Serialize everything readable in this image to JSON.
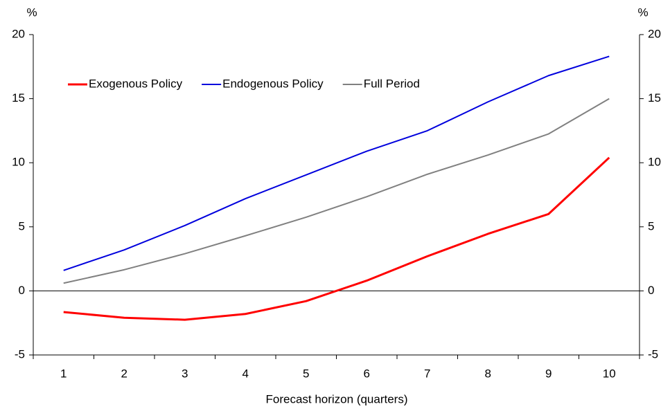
{
  "chart_data": {
    "type": "line",
    "x_label": "Forecast horizon (quarters)",
    "y_unit": "%",
    "y2_unit": "%",
    "categories": [
      "1",
      "2",
      "3",
      "4",
      "5",
      "6",
      "7",
      "8",
      "9",
      "10"
    ],
    "series": [
      {
        "name": "Exogenous Policy",
        "color": "#ff0000",
        "values": [
          -1.65,
          -2.1,
          -2.25,
          -1.8,
          -0.8,
          0.8,
          2.7,
          4.45,
          6.0,
          10.4
        ]
      },
      {
        "name": "Endogenous Policy",
        "color": "#0000dd",
        "values": [
          1.6,
          3.2,
          5.1,
          7.2,
          9.05,
          10.9,
          12.5,
          14.75,
          16.8,
          18.3
        ]
      },
      {
        "name": "Full Period",
        "color": "#808080",
        "values": [
          0.6,
          1.65,
          2.9,
          4.3,
          5.75,
          7.35,
          9.1,
          10.6,
          12.25,
          15.0
        ]
      }
    ],
    "ylim": [
      -5,
      20
    ],
    "yticks": [
      -5,
      0,
      5,
      10,
      15,
      20
    ],
    "y2lim": [
      -5,
      20
    ],
    "y2ticks": [
      -5,
      0,
      5,
      10,
      15,
      20
    ],
    "legend": "top-left"
  }
}
